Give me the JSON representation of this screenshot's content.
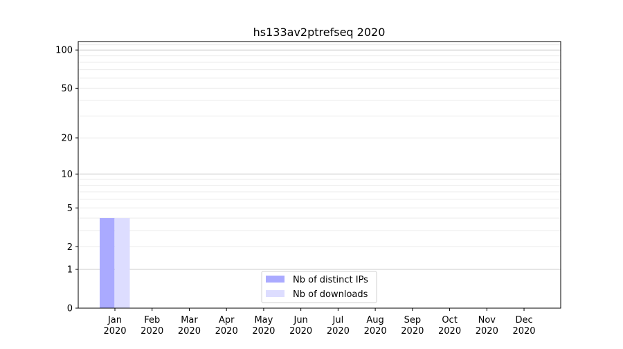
{
  "chart_data": {
    "type": "bar",
    "title": "hs133av2ptrefseq 2020",
    "xlabel": "",
    "ylabel": "",
    "yscale": "log(1+y)",
    "ylim": [
      0,
      120
    ],
    "yticks": [
      0,
      1,
      2,
      5,
      10,
      20,
      50,
      100
    ],
    "grid": true,
    "legend_position": "bottom-center",
    "categories": [
      "Jan\n2020",
      "Feb\n2020",
      "Mar\n2020",
      "Apr\n2020",
      "May\n2020",
      "Jun\n2020",
      "Jul\n2020",
      "Aug\n2020",
      "Sep\n2020",
      "Oct\n2020",
      "Nov\n2020",
      "Dec\n2020"
    ],
    "series": [
      {
        "name": "Nb of distinct IPs",
        "color": "#aaaaff",
        "values": [
          4,
          0,
          0,
          0,
          0,
          0,
          0,
          0,
          0,
          0,
          0,
          0
        ]
      },
      {
        "name": "Nb of downloads",
        "color": "#ddddff",
        "values": [
          4,
          0,
          0,
          0,
          0,
          0,
          0,
          0,
          0,
          0,
          0,
          0
        ]
      }
    ]
  }
}
